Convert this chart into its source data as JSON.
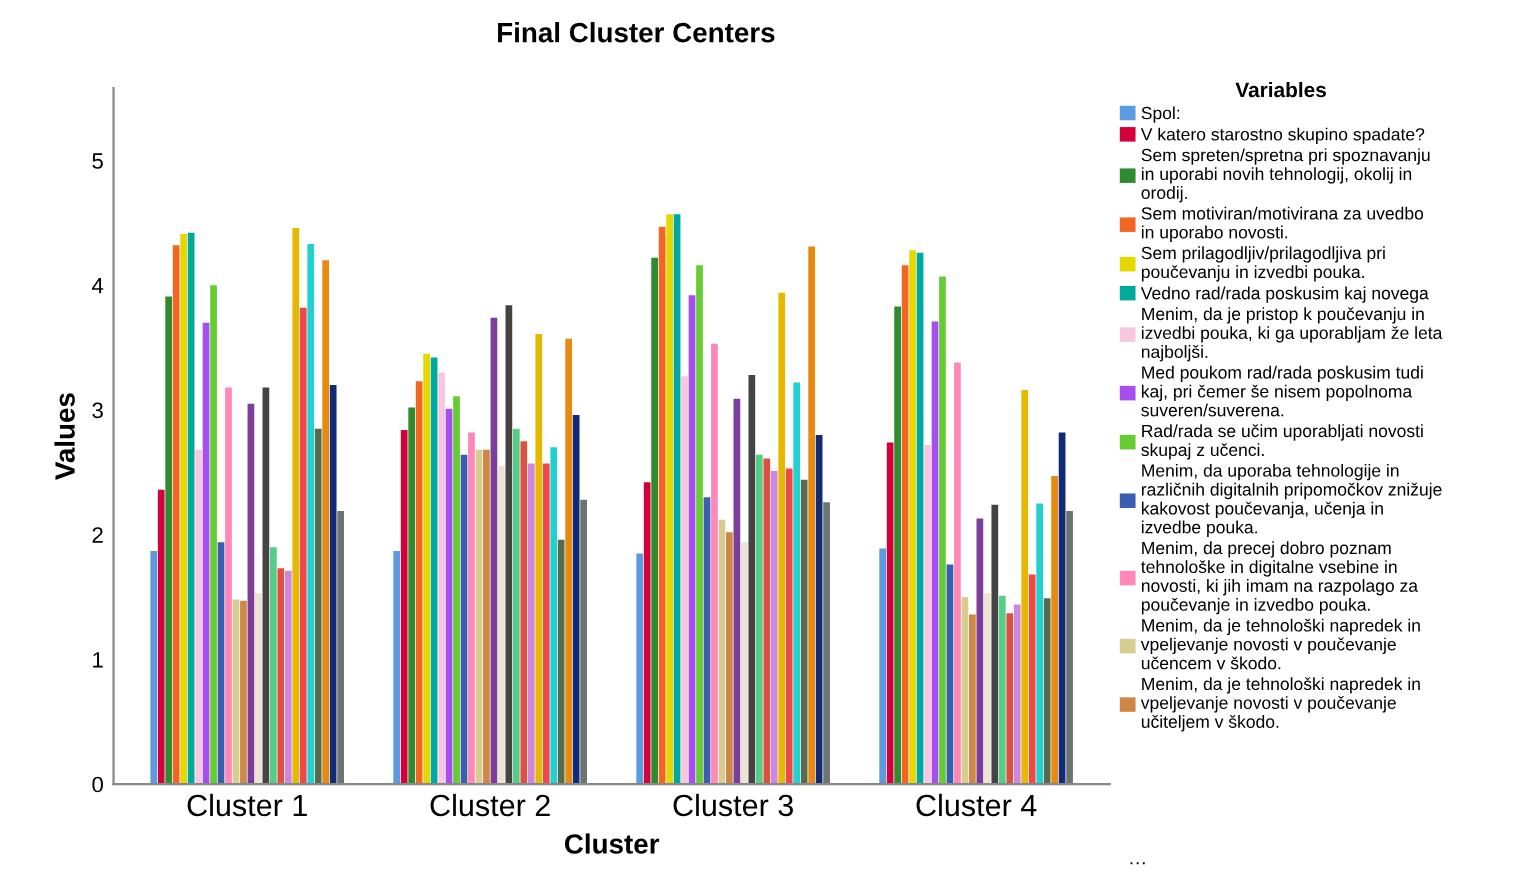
{
  "chart_data": {
    "type": "bar",
    "title": "Final Cluster Centers",
    "xlabel": "Cluster",
    "ylabel": "Values",
    "legend_title": "Variables",
    "legend": "right",
    "grid": false,
    "categories": [
      "Cluster 1",
      "Cluster 2",
      "Cluster 3",
      "Cluster 4"
    ],
    "ylim": [
      0,
      5.58
    ],
    "yticks": [
      0,
      1,
      2,
      3,
      4,
      5
    ],
    "annotations": [
      "…"
    ],
    "series": [
      {
        "name": "Spol:",
        "color": "#5b9be0",
        "values": [
          1.87,
          1.87,
          1.85,
          1.89
        ]
      },
      {
        "name": "V katero starostno skupino spadate?",
        "color": "#d4003c",
        "values": [
          2.36,
          2.84,
          2.42,
          2.74
        ]
      },
      {
        "name": "Sem spreten/spretna pri spoznavanju\nin uporabi novih tehnologij, okolij in\norodij.",
        "color": "#2e8b2e",
        "values": [
          3.91,
          3.02,
          4.22,
          3.83
        ]
      },
      {
        "name": "Sem motiviran/motivirana za uvedbo\nin uporabo novosti.",
        "color": "#f26522",
        "values": [
          4.32,
          3.23,
          4.47,
          4.16
        ]
      },
      {
        "name": "Sem prilagodljiv/prilagodljiva pri\npoučevanju in izvedbi pouka.",
        "color": "#e5d800",
        "values": [
          4.41,
          3.45,
          4.57,
          4.28
        ]
      },
      {
        "name": "Vedno rad/rada poskusim kaj novega",
        "color": "#00a99d",
        "values": [
          4.42,
          3.42,
          4.57,
          4.26
        ]
      },
      {
        "name": "Menim, da je pristop k poučevanju in\nizvedbi pouka, ki ga uporabljam že leta\nnajboljši.",
        "color": "#f9c6e0",
        "values": [
          2.68,
          3.3,
          3.27,
          2.72
        ]
      },
      {
        "name": "Med poukom rad/rada poskusim tudi\nkaj, pri čemer še nisem popolnoma\nsuveren/suverena.",
        "color": "#a64ff0",
        "values": [
          3.7,
          3.01,
          3.92,
          3.71
        ]
      },
      {
        "name": "Rad/rada se učim uporabljati novosti\nskupaj z učenci.",
        "color": "#66cc33",
        "values": [
          4.0,
          3.11,
          4.16,
          4.07
        ]
      },
      {
        "name": "Menim, da uporaba tehnologije in\nrazličnih digitalnih pripomočkov znižuje\nkakovost poučevanja, učenja in\nizvedbe pouka.",
        "color": "#3a5fb0",
        "values": [
          1.94,
          2.64,
          2.3,
          1.76
        ]
      },
      {
        "name": "Menim, da precej dobro poznam\ntehnološke in digitalne vsebine in\nnovosti, ki jih imam na razpolago za\npoučevanje in izvedbo pouka.",
        "color": "#ff88b8",
        "values": [
          3.18,
          2.82,
          3.53,
          3.38
        ]
      },
      {
        "name": "Menim, da je tehnološki napredek in\nvpeljevanje novosti v poučevanje\nučencem v škodo.",
        "color": "#d8cc90",
        "values": [
          1.48,
          2.68,
          2.12,
          1.5
        ]
      },
      {
        "name": "Menim, da je tehnološki napredek in\nvpeljevanje novosti v poučevanje\nučiteljem v škodo.",
        "color": "#cc8844",
        "values": [
          1.47,
          2.68,
          2.02,
          1.36
        ]
      },
      {
        "color": "#7b3f9a",
        "values": [
          3.05,
          3.74,
          3.09,
          2.13
        ]
      },
      {
        "color": "#ebe3d3",
        "values": [
          1.53,
          2.55,
          1.94,
          1.53
        ]
      },
      {
        "color": "#444444",
        "values": [
          3.18,
          3.84,
          3.28,
          2.24
        ]
      },
      {
        "color": "#55cc88",
        "values": [
          1.9,
          2.85,
          2.64,
          1.51
        ]
      },
      {
        "color": "#e05040",
        "values": [
          1.73,
          2.75,
          2.61,
          1.37
        ]
      },
      {
        "color": "#cc88dd",
        "values": [
          1.71,
          2.57,
          2.51,
          1.44
        ]
      },
      {
        "color": "#e6b800",
        "values": [
          4.46,
          3.61,
          3.94,
          3.16
        ]
      },
      {
        "color": "#f04848",
        "values": [
          3.82,
          2.57,
          2.53,
          1.68
        ]
      },
      {
        "color": "#22d0d0",
        "values": [
          4.33,
          2.7,
          3.22,
          2.25
        ]
      },
      {
        "color": "#556b50",
        "values": [
          2.85,
          1.96,
          2.44,
          1.49
        ]
      },
      {
        "color": "#e88a10",
        "values": [
          4.2,
          3.57,
          4.31,
          2.47
        ]
      },
      {
        "color": "#112a78",
        "values": [
          3.2,
          2.96,
          2.8,
          2.82
        ]
      },
      {
        "color": "#6e7470",
        "values": [
          2.19,
          2.28,
          2.26,
          2.19
        ]
      }
    ]
  }
}
